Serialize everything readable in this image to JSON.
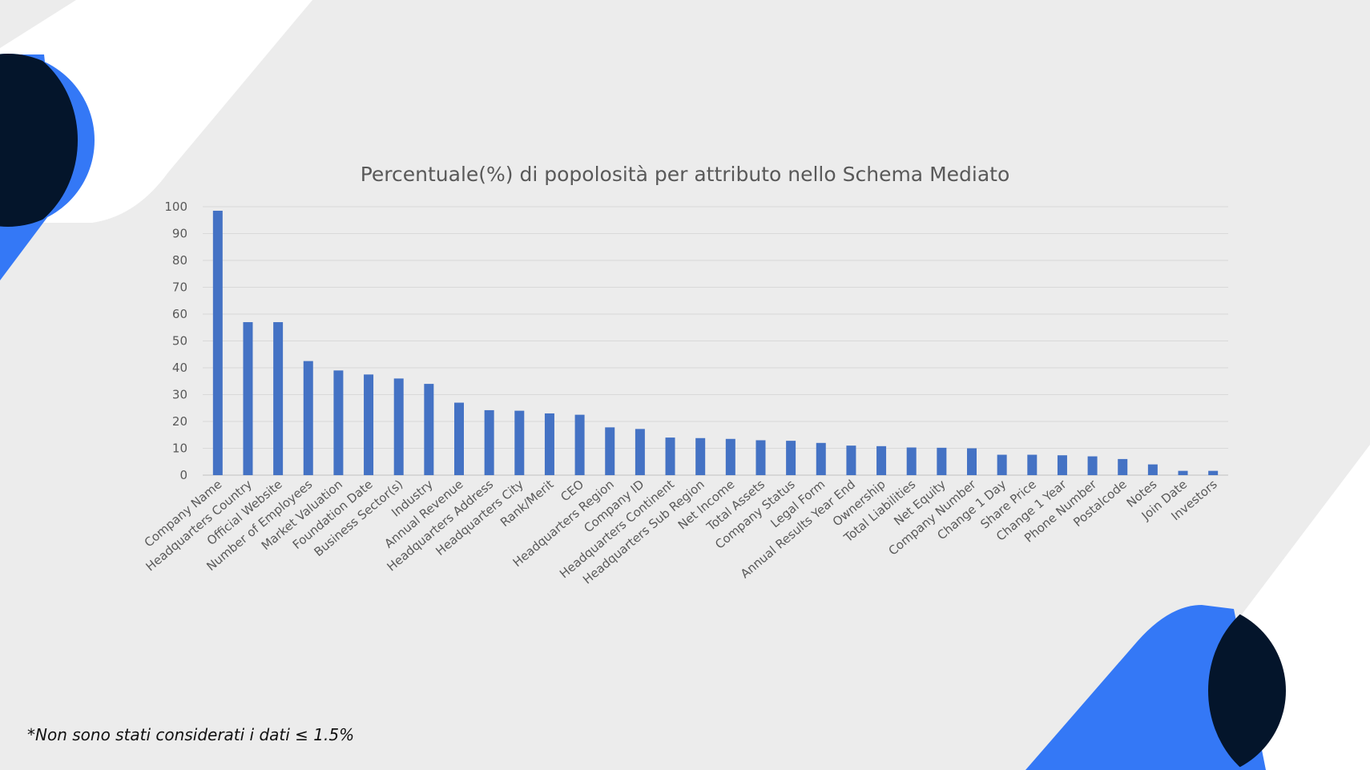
{
  "colors": {
    "background": "#ececec",
    "bar": "#4472c4",
    "accent_blue": "#3478f6",
    "accent_navy": "#04152b",
    "shape_white": "#ffffff"
  },
  "footnote": "*Non sono stati considerati i dati ≤ 1.5%",
  "chart_data": {
    "type": "bar",
    "title": "Percentuale(%) di popolosità per attributo nello Schema Mediato",
    "xlabel": "",
    "ylabel": "",
    "ylim": [
      0,
      100
    ],
    "yticks": [
      0,
      10,
      20,
      30,
      40,
      50,
      60,
      70,
      80,
      90,
      100
    ],
    "grid": true,
    "legend": "none",
    "categories": [
      "Company Name",
      "Headquarters Country",
      "Official Website",
      "Number of Employees",
      "Market Valuation",
      "Foundation Date",
      "Business Sector(s)",
      "Industry",
      "Annual Revenue",
      "Headquarters Address",
      "Headquarters City",
      "Rank/Merit",
      "CEO",
      "Headquarters Region",
      "Company ID",
      "Headquarters Continent",
      "Headquarters Sub Region",
      "Net Income",
      "Total Assets",
      "Company Status",
      "Legal Form",
      "Annual Results Year End",
      "Ownership",
      "Total Liabilities",
      "Net Equity",
      "Company Number",
      "Change 1 Day",
      "Share Price",
      "Change 1 Year",
      "Phone Number",
      "Postalcode",
      "Notes",
      "Join Date",
      "Investors"
    ],
    "values": [
      98.5,
      57,
      57,
      42.5,
      39,
      37.5,
      36,
      34,
      27,
      24.2,
      24,
      23,
      22.5,
      17.8,
      17.2,
      14,
      13.8,
      13.5,
      13,
      12.8,
      12,
      11,
      10.8,
      10.3,
      10.2,
      10,
      7.6,
      7.6,
      7.4,
      7,
      6,
      4,
      1.6,
      1.6
    ]
  }
}
